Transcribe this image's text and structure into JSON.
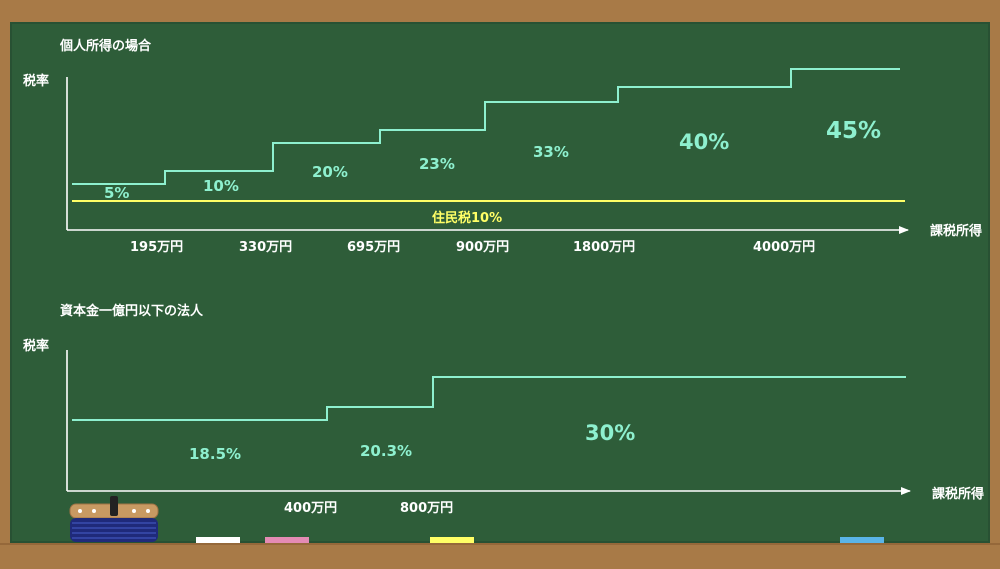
{
  "colors": {
    "board": "#2e5d39",
    "frame": "#a87a47",
    "chalk_white": "#ffffff",
    "chalk_green": "#8ef0cf",
    "chalk_yellow": "#ffff66",
    "chalk_pink": "#e48bb4",
    "chalk_blue": "#5ab4e8"
  },
  "individual": {
    "title": "個人所得の場合",
    "y_label": "税率",
    "x_label": "課税所得",
    "local_tax_label": "住民税10%",
    "ticks": [
      "195万円",
      "330万円",
      "695万円",
      "900万円",
      "1800万円",
      "4000万円"
    ],
    "rates": [
      "5%",
      "10%",
      "20%",
      "23%",
      "33%",
      "40%",
      "45%"
    ]
  },
  "corporate": {
    "title": "資本金一億円以下の法人",
    "y_label": "税率",
    "x_label": "課税所得",
    "ticks": [
      "400万円",
      "800万円"
    ],
    "rates": [
      "18.5%",
      "20.3%",
      "30%"
    ]
  },
  "chart_data": [
    {
      "type": "line",
      "title": "個人所得の場合",
      "ylabel": "税率",
      "xlabel": "課税所得",
      "categories": [
        "〜195万円",
        "195万円〜330万円",
        "330万円〜695万円",
        "695万円〜900万円",
        "900万円〜1800万円",
        "1800万円〜4000万円",
        "4000万円〜"
      ],
      "series": [
        {
          "values": [
            5,
            10,
            20,
            23,
            33,
            40,
            45
          ]
        },
        {
          "name": "住民税10%",
          "values": [
            10,
            10,
            10,
            10,
            10,
            10,
            10
          ]
        }
      ]
    },
    {
      "type": "line",
      "title": "資本金一億円以下の法人",
      "ylabel": "税率",
      "xlabel": "課税所得",
      "categories": [
        "〜400万円",
        "400万円〜800万円",
        "800万円〜"
      ],
      "series": [
        {
          "values": [
            18.5,
            20.3,
            30
          ]
        }
      ]
    }
  ]
}
